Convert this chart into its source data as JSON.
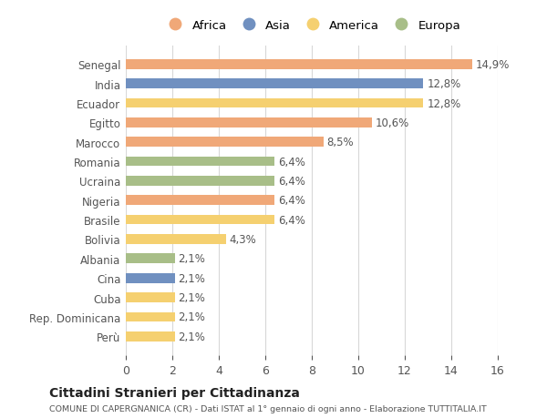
{
  "countries": [
    "Senegal",
    "India",
    "Ecuador",
    "Egitto",
    "Marocco",
    "Romania",
    "Ucraina",
    "Nigeria",
    "Brasile",
    "Bolivia",
    "Albania",
    "Cina",
    "Cuba",
    "Rep. Dominicana",
    "Perù"
  ],
  "values": [
    14.9,
    12.8,
    12.8,
    10.6,
    8.5,
    6.4,
    6.4,
    6.4,
    6.4,
    4.3,
    2.1,
    2.1,
    2.1,
    2.1,
    2.1
  ],
  "labels": [
    "14,9%",
    "12,8%",
    "12,8%",
    "10,6%",
    "8,5%",
    "6,4%",
    "6,4%",
    "6,4%",
    "6,4%",
    "4,3%",
    "2,1%",
    "2,1%",
    "2,1%",
    "2,1%",
    "2,1%"
  ],
  "continents": [
    "Africa",
    "Asia",
    "America",
    "Africa",
    "Africa",
    "Europa",
    "Europa",
    "Africa",
    "America",
    "America",
    "Europa",
    "Asia",
    "America",
    "America",
    "America"
  ],
  "colors": {
    "Africa": "#F0A878",
    "Asia": "#7090C0",
    "America": "#F5D070",
    "Europa": "#A8BE88"
  },
  "legend_order": [
    "Africa",
    "Asia",
    "America",
    "Europa"
  ],
  "xlim": [
    0,
    16
  ],
  "xticks": [
    0,
    2,
    4,
    6,
    8,
    10,
    12,
    14,
    16
  ],
  "title": "Cittadini Stranieri per Cittadinanza",
  "subtitle": "COMUNE DI CAPERGNANICA (CR) - Dati ISTAT al 1° gennaio di ogni anno - Elaborazione TUTTITALIA.IT",
  "bg_color": "#ffffff",
  "grid_color": "#d8d8d8",
  "bar_height": 0.5,
  "label_fontsize": 8.5,
  "ytick_fontsize": 8.5,
  "xtick_fontsize": 9
}
